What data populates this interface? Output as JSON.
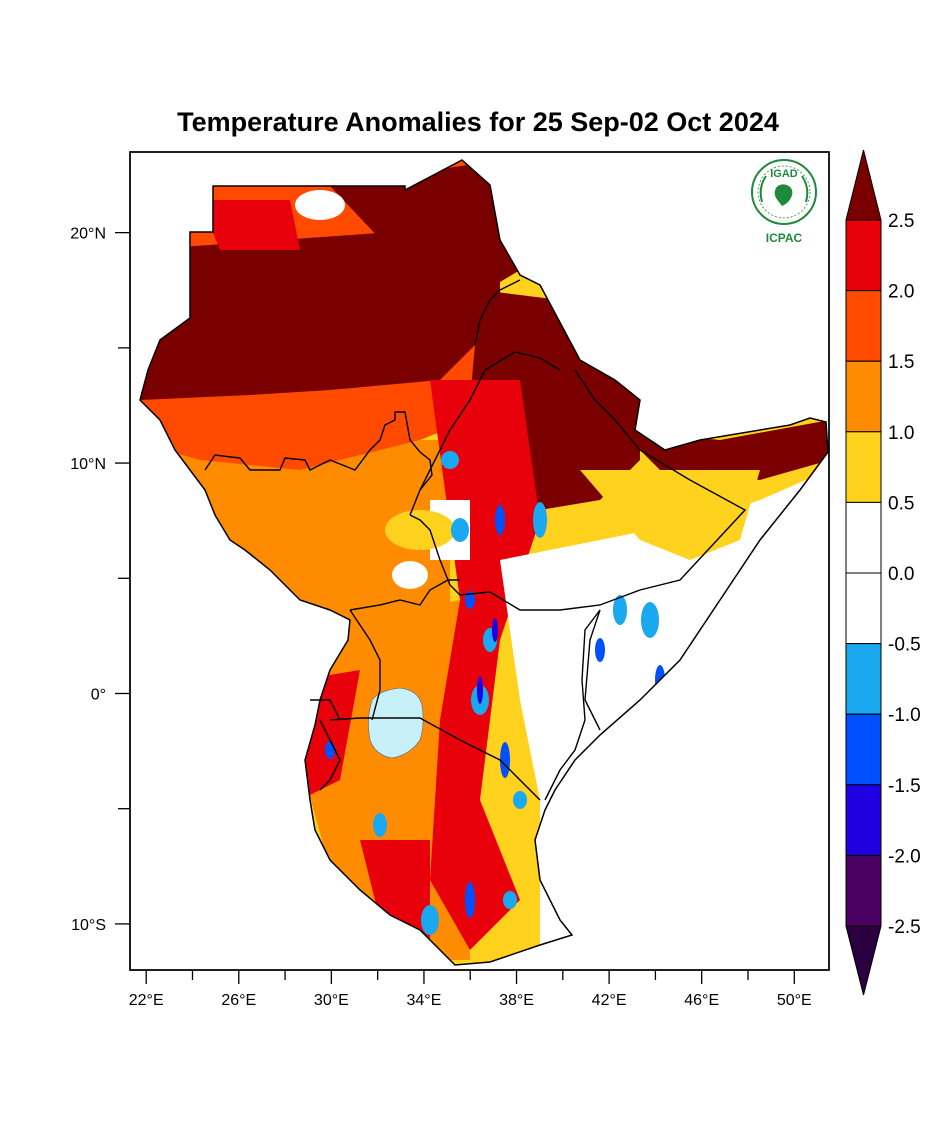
{
  "title": "Temperature Anomalies for 25 Sep-02 Oct 2024",
  "logo": {
    "top_text": "IGAD",
    "bottom_text": "ICPAC",
    "color": "#1f8a3b"
  },
  "map": {
    "lon_range": [
      21.3,
      51.5
    ],
    "lat_range": [
      -12.0,
      23.5
    ],
    "x_ticks": [
      {
        "value": 22,
        "label": "22°E"
      },
      {
        "value": 24,
        "label": ""
      },
      {
        "value": 26,
        "label": "26°E"
      },
      {
        "value": 28,
        "label": ""
      },
      {
        "value": 30,
        "label": "30°E"
      },
      {
        "value": 32,
        "label": ""
      },
      {
        "value": 34,
        "label": "34°E"
      },
      {
        "value": 36,
        "label": ""
      },
      {
        "value": 38,
        "label": "38°E"
      },
      {
        "value": 40,
        "label": ""
      },
      {
        "value": 42,
        "label": "42°E"
      },
      {
        "value": 44,
        "label": ""
      },
      {
        "value": 46,
        "label": "46°E"
      },
      {
        "value": 48,
        "label": ""
      },
      {
        "value": 50,
        "label": "50°E"
      }
    ],
    "y_ticks": [
      {
        "value": 20,
        "label": "20°N"
      },
      {
        "value": 15,
        "label": ""
      },
      {
        "value": 10,
        "label": "10°N"
      },
      {
        "value": 5,
        "label": ""
      },
      {
        "value": 0,
        "label": "0°"
      },
      {
        "value": -5,
        "label": ""
      },
      {
        "value": -10,
        "label": "10°S"
      }
    ],
    "lake_color": "#c8f0f8",
    "border_color": "#000000"
  },
  "colorbar": {
    "levels": [
      "2.5",
      "2.0",
      "1.5",
      "1.0",
      "0.5",
      "0.0",
      "-0.5",
      "-1.0",
      "-1.5",
      "-2.0",
      "-2.5"
    ],
    "top_color": "#7a0000",
    "bottom_color": "#2a0040",
    "bins": [
      {
        "color": "#e8000a"
      },
      {
        "color": "#ff4a00"
      },
      {
        "color": "#ff8c00"
      },
      {
        "color": "#ffd21e"
      },
      {
        "color": "#ffffff"
      },
      {
        "color": "#ffffff"
      },
      {
        "color": "#1aa8f0"
      },
      {
        "color": "#0050ff"
      },
      {
        "color": "#2000e0"
      },
      {
        "color": "#4a0060"
      }
    ]
  }
}
